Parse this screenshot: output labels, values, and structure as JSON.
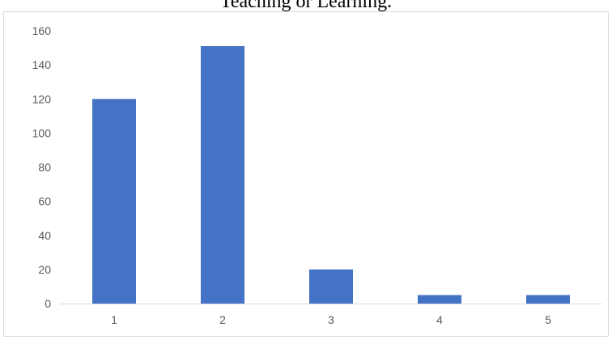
{
  "header": {
    "title": "Teaching or Learning."
  },
  "chart_data": {
    "type": "bar",
    "categories": [
      "1",
      "2",
      "3",
      "4",
      "5"
    ],
    "values": [
      120,
      151,
      20,
      5,
      5
    ],
    "ylim": [
      0,
      160
    ],
    "yticks": [
      0,
      20,
      40,
      60,
      80,
      100,
      120,
      140,
      160
    ],
    "title": "",
    "xlabel": "",
    "ylabel": "",
    "grid": false,
    "legend": "none",
    "bar_color": "#4472c4",
    "axis_color": "#d9d9d9",
    "label_color": "#595959"
  }
}
